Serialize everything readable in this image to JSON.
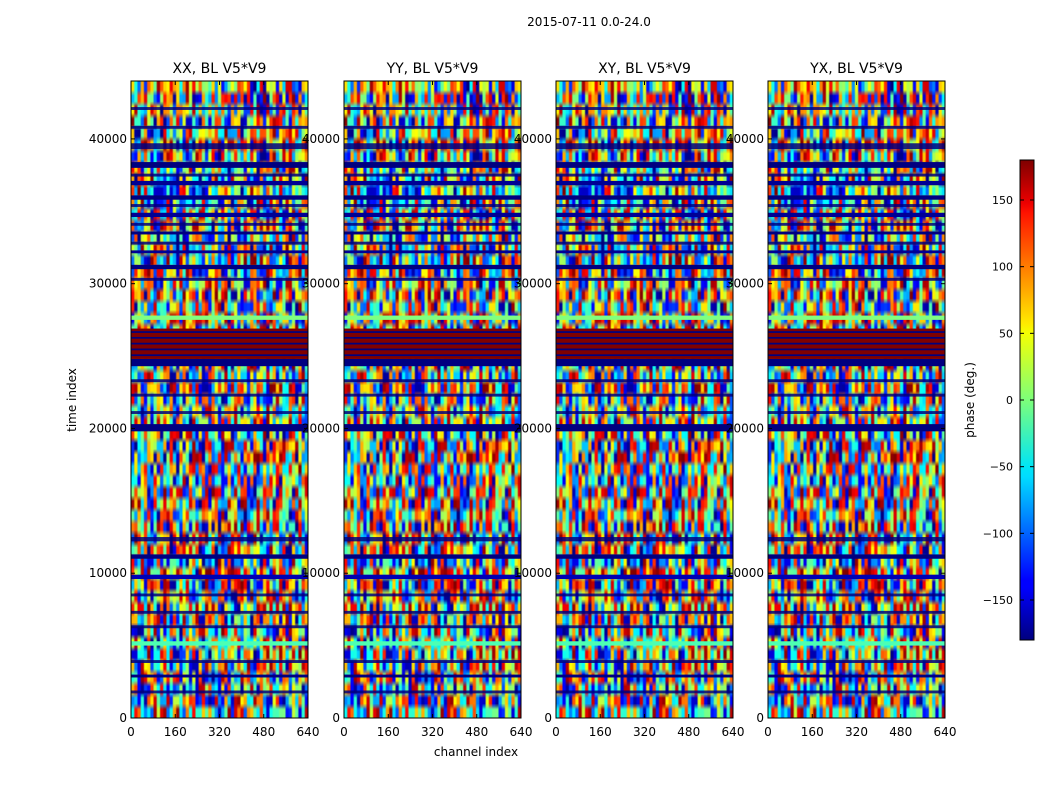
{
  "suptitle": "2015-07-11 0.0-24.0",
  "chart_data": {
    "type": "heatmap",
    "title": "2015-07-11 0.0-24.0",
    "xlabel": "channel index",
    "ylabel": "time index",
    "xlim": [
      0,
      640
    ],
    "ylim": [
      0,
      44000
    ],
    "x_ticks": [
      0,
      160,
      320,
      480,
      640
    ],
    "x_tick_labels": [
      "0",
      "160",
      "320",
      "480",
      "640"
    ],
    "y_ticks": [
      0,
      10000,
      20000,
      30000,
      40000
    ],
    "y_tick_labels": [
      "0",
      "10000",
      "20000",
      "30000",
      "40000"
    ],
    "panels": [
      {
        "title": "XX, BL V5*V9",
        "pol": "XX"
      },
      {
        "title": "YY, BL V5*V9",
        "pol": "YY"
      },
      {
        "title": "XY, BL V5*V9",
        "pol": "XY"
      },
      {
        "title": "YX, BL V5*V9",
        "pol": "YX"
      }
    ],
    "colorbar": {
      "label": "phase (deg.)",
      "vmin": -180,
      "vmax": 180,
      "ticks": [
        -150,
        -100,
        -50,
        0,
        50,
        100,
        150
      ],
      "tick_labels": [
        "−150",
        "−100",
        "−50",
        "0",
        "50",
        "100",
        "150"
      ],
      "colormap": "jet"
    },
    "grid": false
  }
}
